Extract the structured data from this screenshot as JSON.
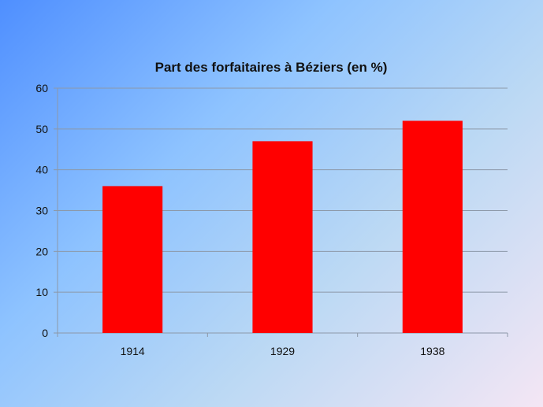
{
  "chart_data": {
    "type": "bar",
    "title": "Part des forfaitaires à Béziers (en %)",
    "categories": [
      "1914",
      "1929",
      "1938"
    ],
    "values": [
      36,
      47,
      52
    ],
    "xlabel": "",
    "ylabel": "",
    "ylim": [
      0,
      60
    ],
    "yticks": [
      0,
      10,
      20,
      30,
      40,
      50,
      60
    ],
    "grid": true,
    "legend": "none",
    "bar_color": "#ff0000",
    "grid_color": "#8c98a8"
  }
}
